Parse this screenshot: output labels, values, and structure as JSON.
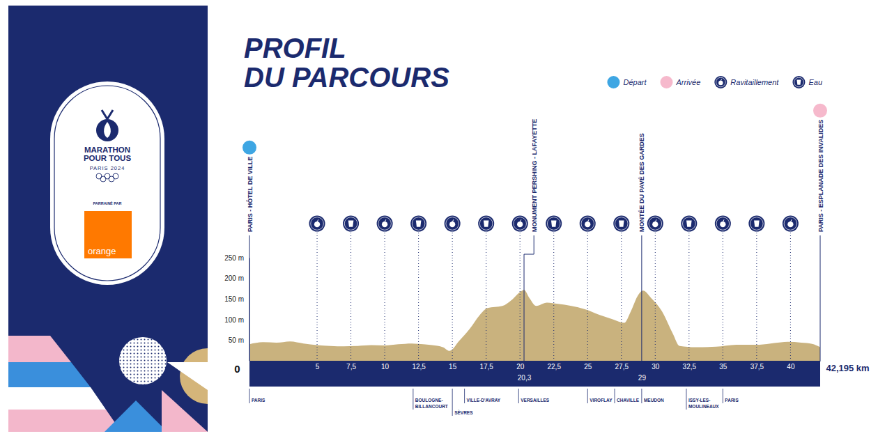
{
  "chart_data": {
    "type": "area",
    "title": "PROFIL DU PARCOURS",
    "x": [
      0,
      1,
      2,
      3,
      4,
      5,
      6,
      7,
      8,
      9,
      10,
      11,
      12,
      12.5,
      13.5,
      14.3,
      14.8,
      15.5,
      16.3,
      17,
      17.6,
      18.7,
      19.4,
      20.1,
      20.3,
      20.7,
      21.2,
      22,
      22.8,
      23.8,
      24.8,
      25.9,
      26.9,
      27.7,
      28.2,
      28.7,
      29.1,
      29.7,
      30.5,
      31.3,
      31.8,
      33,
      34.5,
      36,
      37.7,
      38.8,
      39.8,
      40.8,
      41.6,
      42.195
    ],
    "values": [
      40,
      45,
      44,
      47,
      42,
      38,
      36,
      35,
      36,
      38,
      37,
      40,
      42,
      41,
      38,
      33,
      24,
      48,
      78,
      110,
      128,
      133,
      148,
      169,
      172,
      152,
      133,
      141,
      138,
      133,
      125,
      111,
      100,
      92,
      120,
      157,
      170,
      152,
      120,
      66,
      36,
      33,
      34,
      39,
      39,
      43,
      46,
      44,
      41,
      33
    ],
    "color": "#c9b27e",
    "xlim": [
      0,
      42.195
    ],
    "ylim": [
      0,
      250
    ],
    "xticks": [
      0,
      5,
      {
        "value": 7.5,
        "label": "7,5"
      },
      10,
      {
        "value": 12.5,
        "label": "12,5"
      },
      15,
      {
        "value": 17.5,
        "label": "17,5"
      },
      20,
      {
        "value": 20.3,
        "label": "20,3"
      },
      {
        "value": 22.5,
        "label": "22,5"
      },
      25,
      {
        "value": 27.5,
        "label": "27,5"
      },
      29,
      30,
      {
        "value": 32.5,
        "label": "32,5"
      },
      35,
      {
        "value": 37.5,
        "label": "37,5"
      },
      40,
      {
        "value": 42.195,
        "label": "42,195 km"
      }
    ],
    "yticks": [
      {
        "value": 50,
        "label": "50 m"
      },
      {
        "value": 100,
        "label": "100 m"
      },
      {
        "value": 150,
        "label": "150 m"
      },
      {
        "value": 200,
        "label": "200 m"
      },
      {
        "value": 250,
        "label": "250 m"
      }
    ],
    "grid": false,
    "legend": "top-right",
    "legend_entries": [
      {
        "name": "Départ",
        "marker": "start",
        "color": "#3ea6e3"
      },
      {
        "name": "Arrivée",
        "marker": "finish",
        "color": "#f6b9cc"
      },
      {
        "name": "Ravitaillement",
        "marker": "food"
      },
      {
        "name": "Eau",
        "marker": "water"
      }
    ],
    "landmarks": [
      {
        "x": 0,
        "label": "PARIS - HÔTEL DE VILLE",
        "marker": "start"
      },
      {
        "x": 20.3,
        "label": "MONUMENT PERSHING - LAFAYETTE"
      },
      {
        "x": 29,
        "label": "MONTÉE DU PAVÉ DES GARDES"
      },
      {
        "x": 42.195,
        "label": "PARIS - ESPLANADE DES INVALIDES",
        "marker": "finish"
      }
    ],
    "stations": [
      {
        "x": 5,
        "marker": "food"
      },
      {
        "x": 7.5,
        "marker": "water"
      },
      {
        "x": 10,
        "marker": "food"
      },
      {
        "x": 12.5,
        "marker": "water"
      },
      {
        "x": 15,
        "marker": "food"
      },
      {
        "x": 17.5,
        "marker": "water"
      },
      {
        "x": 20,
        "marker": "food"
      },
      {
        "x": 22.5,
        "marker": "water"
      },
      {
        "x": 25,
        "marker": "food"
      },
      {
        "x": 27.5,
        "marker": "water"
      },
      {
        "x": 30,
        "marker": "food"
      },
      {
        "x": 32.5,
        "marker": "water"
      },
      {
        "x": 35,
        "marker": "food"
      },
      {
        "x": 37.5,
        "marker": "water"
      },
      {
        "x": 40,
        "marker": "food"
      }
    ],
    "towns": [
      {
        "x": 0,
        "lines": [
          "PARIS"
        ]
      },
      {
        "x": 12.1,
        "lines": [
          "BOULOGNE-",
          "BILLANCOURT"
        ]
      },
      {
        "x": 15,
        "lines": [
          "SÈVRES"
        ]
      },
      {
        "x": 15.9,
        "lines": [
          "VILLE-D'AVRAY"
        ]
      },
      {
        "x": 19.9,
        "lines": [
          "VERSAILLES"
        ]
      },
      {
        "x": 25,
        "lines": [
          "VIROFLAY"
        ]
      },
      {
        "x": 27,
        "lines": [
          "CHAVILLE"
        ]
      },
      {
        "x": 29,
        "lines": [
          "MEUDON"
        ]
      },
      {
        "x": 32.3,
        "lines": [
          "ISSY-LES-",
          "MOULINEAUX"
        ]
      },
      {
        "x": 35,
        "lines": [
          "PARIS"
        ]
      }
    ]
  },
  "branding": {
    "event_lines": [
      "MARATHON",
      "POUR TOUS"
    ],
    "edition": "PARIS 2024",
    "sponsor_caption": "PARRAINÉ PAR",
    "sponsor": "orange"
  }
}
